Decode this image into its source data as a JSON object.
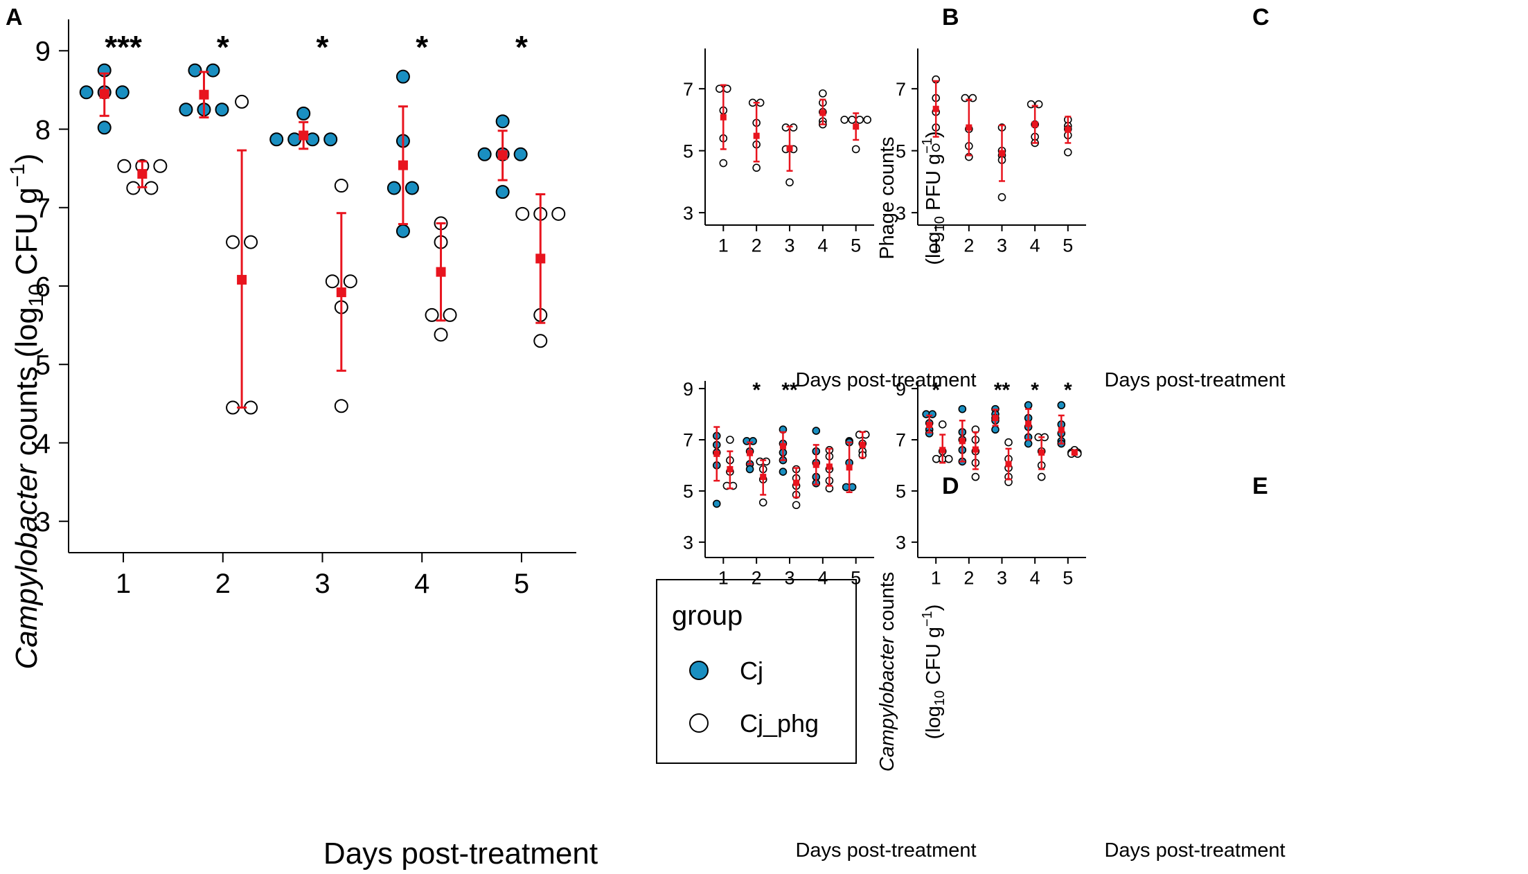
{
  "figure": {
    "colors": {
      "cj": "#1a8fc1",
      "cj_phg": "#ffffff",
      "summary": "#e8141e",
      "axis": "#000000"
    }
  },
  "chart_data": [
    {
      "panel": "A",
      "type": "scatter",
      "title": "",
      "xlabel": "Days post-treatment",
      "ylabel_italic": "Campylobacter",
      "ylabel_rest": " counts (log",
      "ylabel_sub": "10",
      "ylabel_unit": " CFU g",
      "ylabel_sup": "−1",
      "ylabel_close": ")",
      "categories": [
        "1",
        "2",
        "3",
        "4",
        "5"
      ],
      "xlim": [
        0.45,
        5.55
      ],
      "ylim": [
        2.6,
        9.4
      ],
      "yticks": [
        3,
        4,
        5,
        6,
        7,
        8,
        9
      ],
      "significance": [
        "***",
        "*",
        "*",
        "*",
        "*"
      ],
      "legend": {
        "title": "group",
        "position": "bottom-right",
        "entries": [
          "Cj",
          "Cj_phg"
        ]
      },
      "series": [
        {
          "name": "Cj",
          "offset": -0.19,
          "points": [
            [
              8.75,
              8.47,
              8.47,
              8.47,
              8.02
            ],
            [
              8.75,
              8.75,
              8.25,
              8.25,
              8.25
            ],
            [
              8.2,
              7.87,
              7.87,
              7.87,
              7.87
            ],
            [
              8.67,
              7.85,
              7.25,
              7.25,
              6.7
            ],
            [
              8.1,
              7.68,
              7.68,
              7.68,
              7.2
            ]
          ],
          "mean": [
            8.45,
            8.44,
            7.92,
            7.54,
            7.67
          ],
          "lower": [
            8.17,
            8.15,
            7.75,
            6.79,
            7.35
          ],
          "upper": [
            8.71,
            8.73,
            8.09,
            8.29,
            7.98
          ]
        },
        {
          "name": "Cj_phg",
          "offset": 0.19,
          "points": [
            [
              7.53,
              7.53,
              7.53,
              7.25,
              7.25
            ],
            [
              8.35,
              6.56,
              6.56,
              4.45,
              4.45
            ],
            [
              7.28,
              6.06,
              6.06,
              5.73,
              4.47
            ],
            [
              6.8,
              6.56,
              5.63,
              5.63,
              5.38
            ],
            [
              6.92,
              6.92,
              6.92,
              5.63,
              5.3
            ]
          ],
          "mean": [
            7.43,
            6.08,
            5.92,
            6.18,
            6.35
          ],
          "lower": [
            7.26,
            4.45,
            4.92,
            5.56,
            5.53
          ],
          "upper": [
            7.59,
            7.73,
            6.93,
            6.8,
            7.17
          ]
        }
      ]
    },
    {
      "panel": "B",
      "type": "scatter",
      "title": "",
      "xlabel": "Days post-treatment",
      "ylabel_line1": "Phage counts",
      "ylabel_line2_pre": "(log",
      "ylabel_line2_sub": "10",
      "ylabel_line2_unit": " PFU g",
      "ylabel_line2_sup": "−1",
      "ylabel_line2_close": ")",
      "categories": [
        "1",
        "2",
        "3",
        "4",
        "5"
      ],
      "xlim": [
        0.45,
        5.55
      ],
      "ylim": [
        2.6,
        8.3
      ],
      "yticks": [
        3,
        5,
        7
      ],
      "series": [
        {
          "name": "Phage",
          "offset": 0,
          "points": [
            [
              7.0,
              7.0,
              6.3,
              5.4,
              4.6
            ],
            [
              6.55,
              6.55,
              5.9,
              5.2,
              4.45
            ],
            [
              5.75,
              5.75,
              5.05,
              5.05,
              3.98
            ],
            [
              6.85,
              6.55,
              6.25,
              5.95,
              5.85
            ],
            [
              6.0,
              6.0,
              6.0,
              6.0,
              5.05
            ]
          ],
          "mean": [
            6.08,
            5.48,
            5.08,
            6.22,
            5.78
          ],
          "lower": [
            5.05,
            4.65,
            4.35,
            5.85,
            5.35
          ],
          "upper": [
            7.12,
            6.55,
            5.78,
            6.65,
            6.21
          ]
        }
      ]
    },
    {
      "panel": "C",
      "type": "scatter",
      "title": "",
      "xlabel": "Days post-treatment",
      "categories": [
        "1",
        "2",
        "3",
        "4",
        "5"
      ],
      "xlim": [
        0.45,
        5.55
      ],
      "ylim": [
        2.6,
        8.3
      ],
      "yticks": [
        3,
        5,
        7
      ],
      "series": [
        {
          "name": "Phage",
          "offset": 0,
          "points": [
            [
              7.3,
              6.7,
              6.25,
              5.75,
              5.1
            ],
            [
              6.7,
              6.7,
              5.7,
              5.15,
              4.8
            ],
            [
              5.75,
              5.0,
              4.85,
              4.7,
              3.5
            ],
            [
              6.5,
              6.5,
              5.85,
              5.45,
              5.25
            ],
            [
              6.0,
              5.8,
              5.7,
              5.5,
              4.95
            ]
          ],
          "mean": [
            6.35,
            5.75,
            4.92,
            5.85,
            5.68
          ],
          "lower": [
            5.45,
            4.85,
            4.02,
            5.25,
            5.25
          ],
          "upper": [
            7.25,
            6.65,
            5.82,
            6.45,
            6.1
          ]
        }
      ]
    },
    {
      "panel": "D",
      "type": "scatter",
      "title": "",
      "xlabel": "Days post-treatment",
      "ylabel_line1_italic": "Campylobacter",
      "ylabel_line1_rest": " counts",
      "ylabel_line2_pre": "(log",
      "ylabel_line2_sub": "10",
      "ylabel_line2_unit": " CFU g",
      "ylabel_line2_sup": "−1",
      "ylabel_line2_close": ")",
      "categories": [
        "1",
        "2",
        "3",
        "4",
        "5"
      ],
      "xlim": [
        0.45,
        5.55
      ],
      "ylim": [
        2.4,
        9.3
      ],
      "yticks": [
        3,
        5,
        7,
        9
      ],
      "significance": [
        "",
        "*",
        "**",
        "",
        ""
      ],
      "series": [
        {
          "name": "Cj",
          "offset": -0.2,
          "points": [
            [
              7.15,
              6.8,
              6.5,
              6.0,
              4.5
            ],
            [
              6.95,
              6.95,
              6.55,
              6.05,
              5.85
            ],
            [
              7.4,
              6.85,
              6.5,
              6.2,
              5.75
            ],
            [
              7.35,
              6.55,
              6.1,
              5.55,
              5.3
            ],
            [
              6.95,
              6.9,
              6.1,
              5.15,
              5.15
            ]
          ],
          "mean": [
            6.45,
            6.48,
            6.75,
            6.02,
            5.92
          ],
          "lower": [
            5.4,
            6.05,
            6.2,
            5.25,
            4.95
          ],
          "upper": [
            7.5,
            6.9,
            7.3,
            6.8,
            6.9
          ]
        },
        {
          "name": "Cj_phg",
          "offset": 0.2,
          "points": [
            [
              7.0,
              6.2,
              5.75,
              5.2,
              5.2
            ],
            [
              6.15,
              6.15,
              5.85,
              5.45,
              4.55
            ],
            [
              5.85,
              5.5,
              5.2,
              4.85,
              4.45
            ],
            [
              6.6,
              6.35,
              5.85,
              5.4,
              5.1
            ],
            [
              7.2,
              7.2,
              6.85,
              6.55,
              6.4
            ]
          ],
          "mean": [
            5.85,
            5.55,
            5.32,
            5.95,
            6.8
          ],
          "lower": [
            5.1,
            4.85,
            4.75,
            5.2,
            6.3
          ],
          "upper": [
            6.55,
            6.2,
            5.9,
            6.65,
            7.3
          ]
        }
      ]
    },
    {
      "panel": "E",
      "type": "scatter",
      "title": "",
      "xlabel": "Days post-treatment",
      "categories": [
        "1",
        "2",
        "3",
        "4",
        "5"
      ],
      "xlim": [
        0.45,
        5.55
      ],
      "ylim": [
        2.4,
        9.3
      ],
      "yticks": [
        3,
        5,
        7,
        9
      ],
      "significance": [
        "*",
        "",
        "**",
        "*",
        "*"
      ],
      "series": [
        {
          "name": "Cj",
          "offset": -0.2,
          "points": [
            [
              8.0,
              8.0,
              7.65,
              7.4,
              7.25
            ],
            [
              8.2,
              7.3,
              7.0,
              6.6,
              6.15
            ],
            [
              8.2,
              8.0,
              7.85,
              7.75,
              7.4
            ],
            [
              8.35,
              7.85,
              7.5,
              7.1,
              6.85
            ],
            [
              8.35,
              7.6,
              7.25,
              6.95,
              6.85
            ]
          ],
          "mean": [
            7.58,
            6.95,
            7.85,
            7.62,
            7.38
          ],
          "lower": [
            7.28,
            6.15,
            7.55,
            7.0,
            6.85
          ],
          "upper": [
            7.95,
            7.75,
            8.18,
            8.2,
            7.95
          ]
        },
        {
          "name": "Cj_phg",
          "offset": 0.2,
          "points": [
            [
              7.6,
              6.55,
              6.25,
              6.25,
              6.25
            ],
            [
              7.4,
              7.0,
              6.55,
              6.1,
              5.55
            ],
            [
              6.9,
              6.25,
              5.9,
              5.55,
              5.35
            ],
            [
              7.1,
              7.1,
              6.55,
              6.0,
              5.55
            ],
            [
              6.6,
              6.5,
              6.5,
              6.45,
              6.45
            ]
          ],
          "mean": [
            6.6,
            6.62,
            6.05,
            6.5,
            6.5
          ],
          "lower": [
            6.1,
            5.85,
            5.45,
            5.85,
            6.45
          ],
          "upper": [
            7.2,
            7.3,
            6.65,
            7.1,
            6.6
          ]
        }
      ]
    }
  ]
}
